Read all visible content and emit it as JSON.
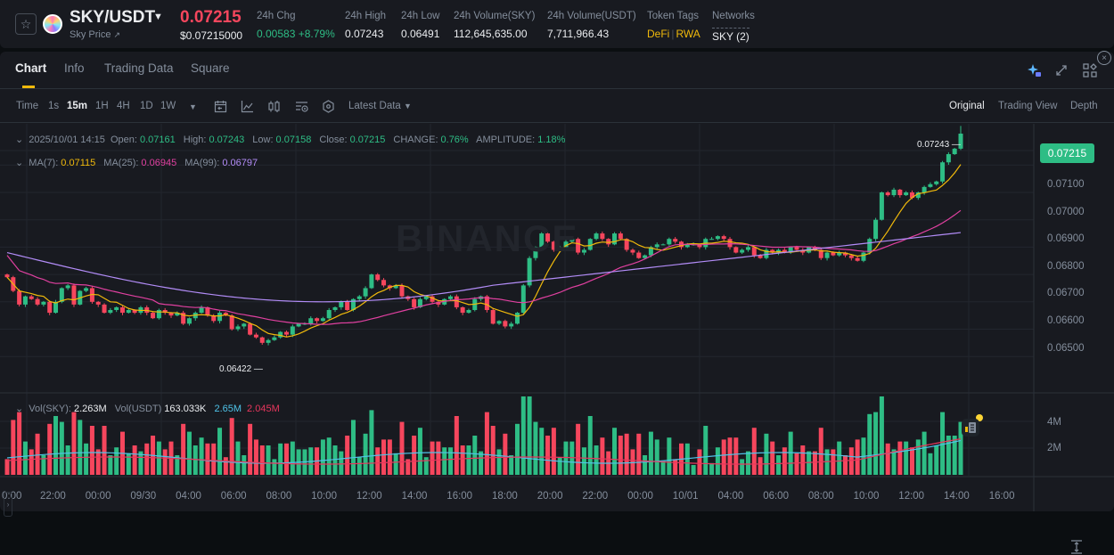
{
  "header": {
    "pair": "SKY/USDT",
    "subtitle": "Sky Price",
    "subtitle_icon": "external-link-icon",
    "last_price": "0.07215",
    "usd_price": "$0.07215000",
    "stats": [
      {
        "label": "24h Chg",
        "value": "0.00583 +8.79%",
        "color": "#2ebd85"
      },
      {
        "label": "24h High",
        "value": "0.07243"
      },
      {
        "label": "24h Low",
        "value": "0.06491"
      },
      {
        "label": "24h Volume(SKY)",
        "value": "112,645,635.00"
      },
      {
        "label": "24h Volume(USDT)",
        "value": "7,711,966.43"
      }
    ],
    "token_tags": {
      "label": "Token Tags",
      "tags": [
        "DeFi",
        "RWA"
      ],
      "separator": "|"
    },
    "networks": {
      "label": "Networks",
      "value": "SKY (2)"
    }
  },
  "tabs": [
    {
      "label": "Chart",
      "active": true
    },
    {
      "label": "Info"
    },
    {
      "label": "Trading Data"
    },
    {
      "label": "Square"
    }
  ],
  "toolbar": {
    "intervals": [
      "Time",
      "1s",
      "15m",
      "1H",
      "4H",
      "1D",
      "1W"
    ],
    "active_interval": "15m",
    "latest_data": "Latest Data",
    "views": [
      "Original",
      "Trading View",
      "Depth"
    ],
    "active_view": "Original"
  },
  "ohlc": {
    "datetime": "2025/10/01 14:15",
    "open_label": "Open:",
    "open": "0.07161",
    "high_label": "High:",
    "high": "0.07243",
    "low_label": "Low:",
    "low": "0.07158",
    "close_label": "Close:",
    "close": "0.07215",
    "change_label": "CHANGE:",
    "change": "0.76%",
    "amplitude_label": "AMPLITUDE:",
    "amplitude": "1.18%"
  },
  "ma": {
    "ma7_label": "MA(7):",
    "ma7": "0.07115",
    "ma25_label": "MA(25):",
    "ma25": "0.06945",
    "ma99_label": "MA(99):",
    "ma99": "0.06797"
  },
  "volume": {
    "sky_label": "Vol(SKY):",
    "sky": "2.263M",
    "usdt_label": "Vol(USDT)",
    "usdt": "163.033K",
    "ma1": "2.65M",
    "ma2": "2.045M"
  },
  "watermark": "BINANCE",
  "chart_data": {
    "type": "candlestick",
    "price_axis": [
      "0.07100",
      "0.07000",
      "0.06900",
      "0.06800",
      "0.06700",
      "0.06600",
      "0.06500"
    ],
    "current_price": "0.07215",
    "high_marker": "0.07243",
    "low_marker": "0.06422",
    "volume_axis": [
      "4M",
      "2M"
    ],
    "time_axis": [
      "0:00",
      "22:00",
      "00:00",
      "09/30",
      "04:00",
      "06:00",
      "08:00",
      "10:00",
      "12:00",
      "14:00",
      "16:00",
      "18:00",
      "20:00",
      "22:00",
      "00:00",
      "10/01",
      "04:00",
      "06:00",
      "08:00",
      "10:00",
      "12:00",
      "14:00",
      "16:00"
    ],
    "colors": {
      "up": "#2ebd85",
      "down": "#f6465d",
      "ma7": "#f0b90b",
      "ma25": "#e040a0",
      "ma99": "#b28cf7",
      "vol_ma1": "#4fc3e8",
      "vol_ma2": "#e8365d"
    },
    "closes": [
      0.0669,
      0.0664,
      0.0659,
      0.0662,
      0.0661,
      0.0659,
      0.066,
      0.0656,
      0.066,
      0.0665,
      0.0666,
      0.0659,
      0.0664,
      0.0665,
      0.066,
      0.0659,
      0.0656,
      0.0657,
      0.0658,
      0.0656,
      0.0657,
      0.0656,
      0.0658,
      0.0656,
      0.0654,
      0.0657,
      0.0656,
      0.0655,
      0.0656,
      0.0652,
      0.0654,
      0.0656,
      0.0658,
      0.0655,
      0.0653,
      0.0656,
      0.0655,
      0.065,
      0.0651,
      0.0652,
      0.0648,
      0.0647,
      0.0645,
      0.0646,
      0.0647,
      0.0649,
      0.0648,
      0.0651,
      0.0652,
      0.0652,
      0.0654,
      0.0653,
      0.0654,
      0.0657,
      0.0658,
      0.066,
      0.0657,
      0.0661,
      0.0662,
      0.0665,
      0.067,
      0.0668,
      0.0666,
      0.0665,
      0.0666,
      0.0662,
      0.0661,
      0.0658,
      0.0661,
      0.0662,
      0.066,
      0.0659,
      0.0661,
      0.0662,
      0.0658,
      0.0656,
      0.0657,
      0.0661,
      0.0662,
      0.0657,
      0.0652,
      0.0653,
      0.0651,
      0.0652,
      0.0656,
      0.0666,
      0.0676,
      0.068,
      0.0685,
      0.0682,
      0.0679,
      0.068,
      0.0682,
      0.0683,
      0.0678,
      0.0679,
      0.0683,
      0.0685,
      0.0683,
      0.0681,
      0.0685,
      0.0683,
      0.0679,
      0.0678,
      0.0676,
      0.0677,
      0.068,
      0.0681,
      0.0681,
      0.0683,
      0.0682,
      0.068,
      0.0681,
      0.0681,
      0.068,
      0.0683,
      0.0683,
      0.0684,
      0.0683,
      0.068,
      0.0678,
      0.0679,
      0.068,
      0.0677,
      0.0676,
      0.0679,
      0.0678,
      0.0679,
      0.0678,
      0.068,
      0.0679,
      0.0678,
      0.068,
      0.0679,
      0.0676,
      0.0678,
      0.0677,
      0.0678,
      0.0677,
      0.0676,
      0.0675,
      0.0678,
      0.0683,
      0.069,
      0.07,
      0.0699,
      0.0701,
      0.0699,
      0.07,
      0.0698,
      0.07,
      0.0702,
      0.0703,
      0.0704,
      0.0711,
      0.0714,
      0.0716,
      0.07215
    ]
  }
}
